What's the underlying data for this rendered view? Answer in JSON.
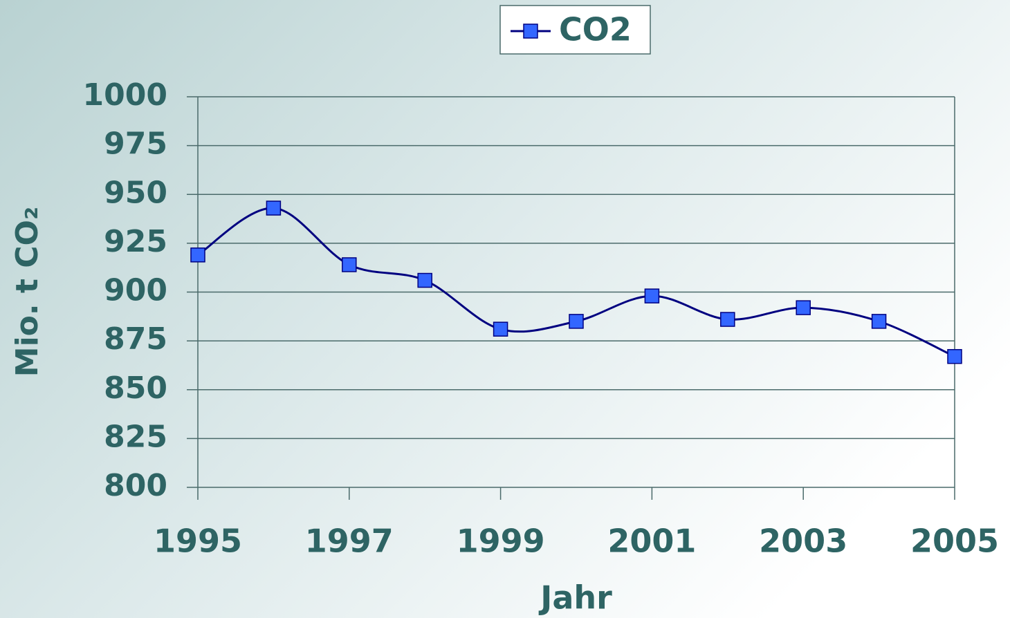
{
  "chart_data": {
    "type": "line",
    "x": [
      1995,
      1996,
      1997,
      1998,
      1999,
      2000,
      2001,
      2002,
      2003,
      2004,
      2005
    ],
    "series": [
      {
        "name": "CO2",
        "color": "#000080",
        "marker_color": "#3366ff",
        "values": [
          919,
          943,
          914,
          906,
          881,
          885,
          898,
          886,
          892,
          885,
          867
        ]
      }
    ],
    "xlim": [
      1995,
      2005
    ],
    "xticks": [
      1995,
      1997,
      1999,
      2001,
      2003,
      2005
    ],
    "ylim": [
      800,
      1000
    ],
    "yticks": [
      800,
      825,
      850,
      875,
      900,
      925,
      950,
      975,
      1000
    ],
    "xlabel": "Jahr",
    "ylabel": "Mio. t CO₂",
    "grid": true,
    "legend": "top",
    "smooth": true
  }
}
